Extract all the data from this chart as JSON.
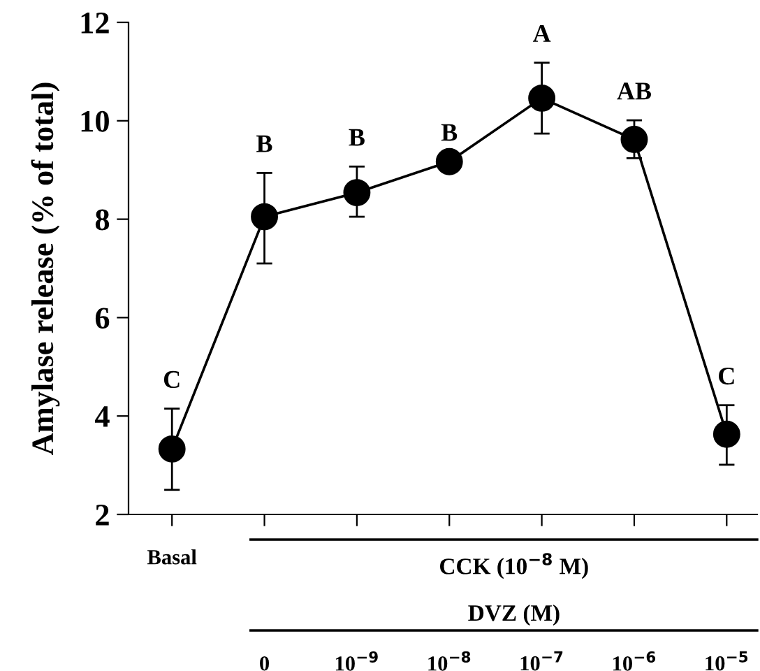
{
  "chart_data": {
    "type": "line",
    "ylabel": "Amylase release (% of total)",
    "categories": [
      "Basal",
      "0",
      "10$^{−9}$",
      "10$^{−8}$",
      "10$^{−7}$",
      "10$^{−6}$",
      "10$^{−5}$"
    ],
    "series": [
      {
        "color": "#000000",
        "values": [
          3.33,
          8.05,
          8.54,
          9.17,
          10.46,
          9.62,
          3.63
        ],
        "errors": [
          [
            2.5,
            4.15
          ],
          [
            7.1,
            8.94
          ],
          [
            8.05,
            9.07
          ],
          null,
          [
            9.74,
            11.18
          ],
          [
            9.24,
            10.01
          ],
          [
            3.01,
            4.22
          ]
        ]
      }
    ],
    "marker": "circle",
    "line_style": "solid",
    "ylim": [
      2,
      12
    ],
    "yticks": [
      2,
      4,
      6,
      8,
      10,
      12
    ],
    "grid": false,
    "legend": false,
    "annotations": [
      {
        "text": "C",
        "x": "Basal",
        "y": 4.15
      },
      {
        "text": "B",
        "x": "0",
        "y": 8.94
      },
      {
        "text": "B",
        "x": "10$^{−9}$",
        "y": 9.07
      },
      {
        "text": "B",
        "x": "10$^{−8}$",
        "y": 9.17
      },
      {
        "text": "A",
        "x": "10$^{−7}$",
        "y": 11.18
      },
      {
        "text": "AB",
        "x": "10$^{−6}$",
        "y": 10.01
      },
      {
        "text": "C",
        "x": "10$^{−5}$",
        "y": 4.22
      },
      "CCK (10$^{−8}$ M)",
      "DVZ (M)"
    ]
  }
}
